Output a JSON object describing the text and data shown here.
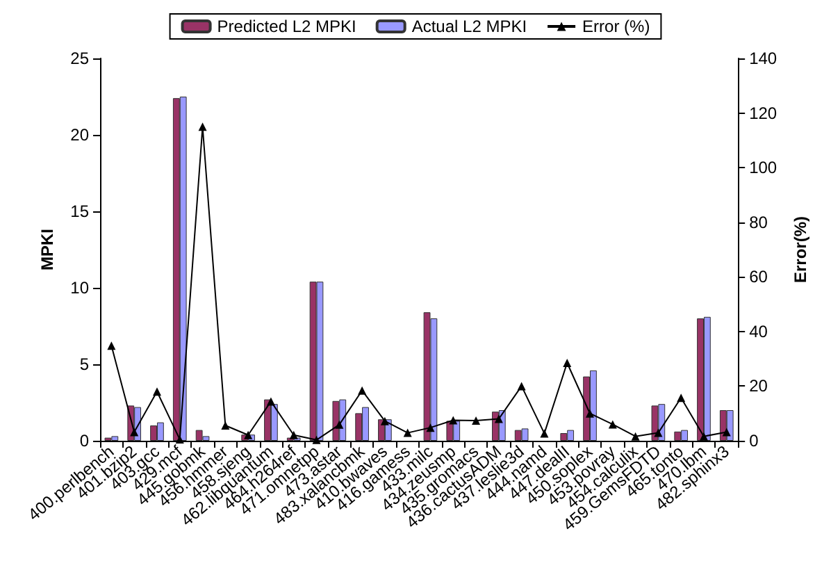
{
  "chart_data": {
    "type": "bar",
    "ylabel": "MPKI",
    "y2label": "Error(%)",
    "categories": [
      "400.perlbench",
      "401.bzip2",
      "403.gcc",
      "429.mcf",
      "445.gobmk",
      "456.hmmer",
      "458.sjeng",
      "462.libquantum",
      "464.h264ref",
      "471.omnetpp",
      "473.astar",
      "483.xalancbmk",
      "410.bwaves",
      "416.gamess",
      "433.milc",
      "434.zeusmp",
      "435.gromacs",
      "436.cactusADM",
      "437.leslie3d",
      "444.namd",
      "447.dealII",
      "450.soplex",
      "453.povray",
      "454.calculix",
      "459.GemsFDTD",
      "465.tonto",
      "470.lbm",
      "482.sphinx3"
    ],
    "series": [
      {
        "name": "Predicted L2 MPKI",
        "color": "#993366",
        "values": [
          0.2,
          2.3,
          1.0,
          22.4,
          0.7,
          0,
          0.4,
          2.7,
          0.2,
          10.4,
          2.6,
          1.8,
          1.4,
          0,
          8.4,
          1.3,
          0,
          1.9,
          0.7,
          0,
          0.5,
          4.2,
          0,
          0,
          2.3,
          0.6,
          8.0,
          2.0
        ]
      },
      {
        "name": "Actual L2 MPKI",
        "color": "#9999ff",
        "values": [
          0.3,
          2.2,
          1.2,
          22.5,
          0.3,
          0,
          0.4,
          2.4,
          0.2,
          10.4,
          2.7,
          2.2,
          1.4,
          0,
          8.0,
          1.3,
          0,
          2.0,
          0.8,
          0,
          0.7,
          4.6,
          0,
          0,
          2.4,
          0.7,
          8.1,
          2.0
        ]
      },
      {
        "name": "Error (%)",
        "type": "line",
        "axis": "y2",
        "color": "#000000",
        "marker": "triangle",
        "values": [
          34.8,
          3.2,
          18,
          0.5,
          115,
          5.6,
          2.1,
          14.4,
          2.1,
          0.3,
          5.9,
          18.4,
          7.2,
          2.9,
          4.8,
          7.5,
          7.4,
          8,
          20,
          2.7,
          28.5,
          10,
          6,
          1.6,
          2.9,
          15.7,
          1.6,
          3.2
        ]
      }
    ],
    "ylim": [
      0,
      25
    ],
    "yticks": [
      0,
      5,
      10,
      15,
      20,
      25
    ],
    "y2lim": [
      0,
      140
    ],
    "y2ticks": [
      0,
      20,
      40,
      60,
      80,
      100,
      120,
      140
    ],
    "grid": false,
    "legend": "top"
  }
}
